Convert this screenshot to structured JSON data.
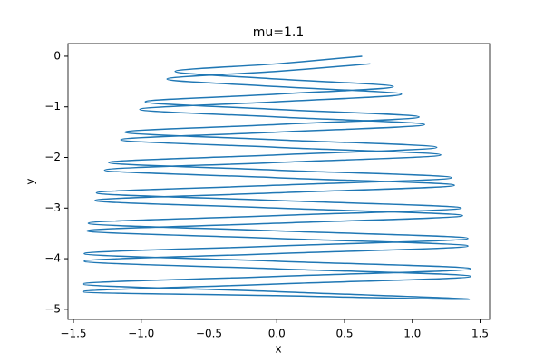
{
  "chart_data": {
    "type": "line",
    "title": "mu=1.1",
    "xlabel": "x",
    "ylabel": "y",
    "color": "#1f77b4",
    "x": [
      0.63,
      0,
      -0.75,
      0,
      0.86,
      0,
      -0.97,
      0,
      1.05,
      0,
      -1.12,
      0,
      1.18,
      0,
      -1.24,
      0,
      1.29,
      0,
      -1.33,
      0,
      1.36,
      0,
      -1.39,
      0,
      1.41,
      0,
      -1.42,
      0,
      1.43,
      0,
      -1.43,
      0,
      1.42,
      0,
      -1.43,
      0,
      1.43,
      0,
      -1.42,
      0,
      1.41,
      0,
      -1.4,
      0,
      1.37,
      0,
      -1.34,
      0,
      1.31,
      0,
      -1.27,
      0,
      1.21,
      0,
      -1.15,
      0,
      1.09,
      0,
      -1.01,
      0,
      0.92,
      0,
      -0.81,
      0,
      0.69
    ],
    "y": [
      0,
      -0.15,
      -0.3,
      -0.45,
      -0.6,
      -0.75,
      -0.9,
      -1.05,
      -1.2,
      -1.35,
      -1.5,
      -1.65,
      -1.8,
      -1.95,
      -2.1,
      -2.25,
      -2.4,
      -2.55,
      -2.7,
      -2.85,
      -3.0,
      -3.15,
      -3.3,
      -3.45,
      -3.6,
      -3.75,
      -3.9,
      -4.05,
      -4.2,
      -4.35,
      -4.5,
      -4.65,
      -4.8,
      -4.73,
      -4.65,
      -4.5,
      -4.35,
      -4.2,
      -4.05,
      -3.9,
      -3.75,
      -3.6,
      -3.45,
      -3.3,
      -3.15,
      -3.0,
      -2.85,
      -2.7,
      -2.55,
      -2.4,
      -2.25,
      -2.1,
      -1.95,
      -1.8,
      -1.65,
      -1.5,
      -1.35,
      -1.2,
      -1.05,
      -0.9,
      -0.75,
      -0.6,
      -0.45,
      -0.3,
      -0.15
    ],
    "xlim": [
      -1.54,
      1.57
    ],
    "ylim": [
      -5.2,
      0.25
    ],
    "xticks": [
      {
        "value": -1.5,
        "label": "−1.5"
      },
      {
        "value": -1.0,
        "label": "−1.0"
      },
      {
        "value": -0.5,
        "label": "−0.5"
      },
      {
        "value": 0,
        "label": "0.0"
      },
      0.5,
      {
        "value": 1.0,
        "label": "1.0"
      },
      1.5
    ],
    "yticks": [
      0,
      {
        "value": -1,
        "label": "−1"
      },
      {
        "value": -2,
        "label": "−2"
      },
      {
        "value": -3,
        "label": "−3"
      },
      {
        "value": -4,
        "label": "−4"
      },
      {
        "value": -5,
        "label": "−5"
      }
    ]
  }
}
